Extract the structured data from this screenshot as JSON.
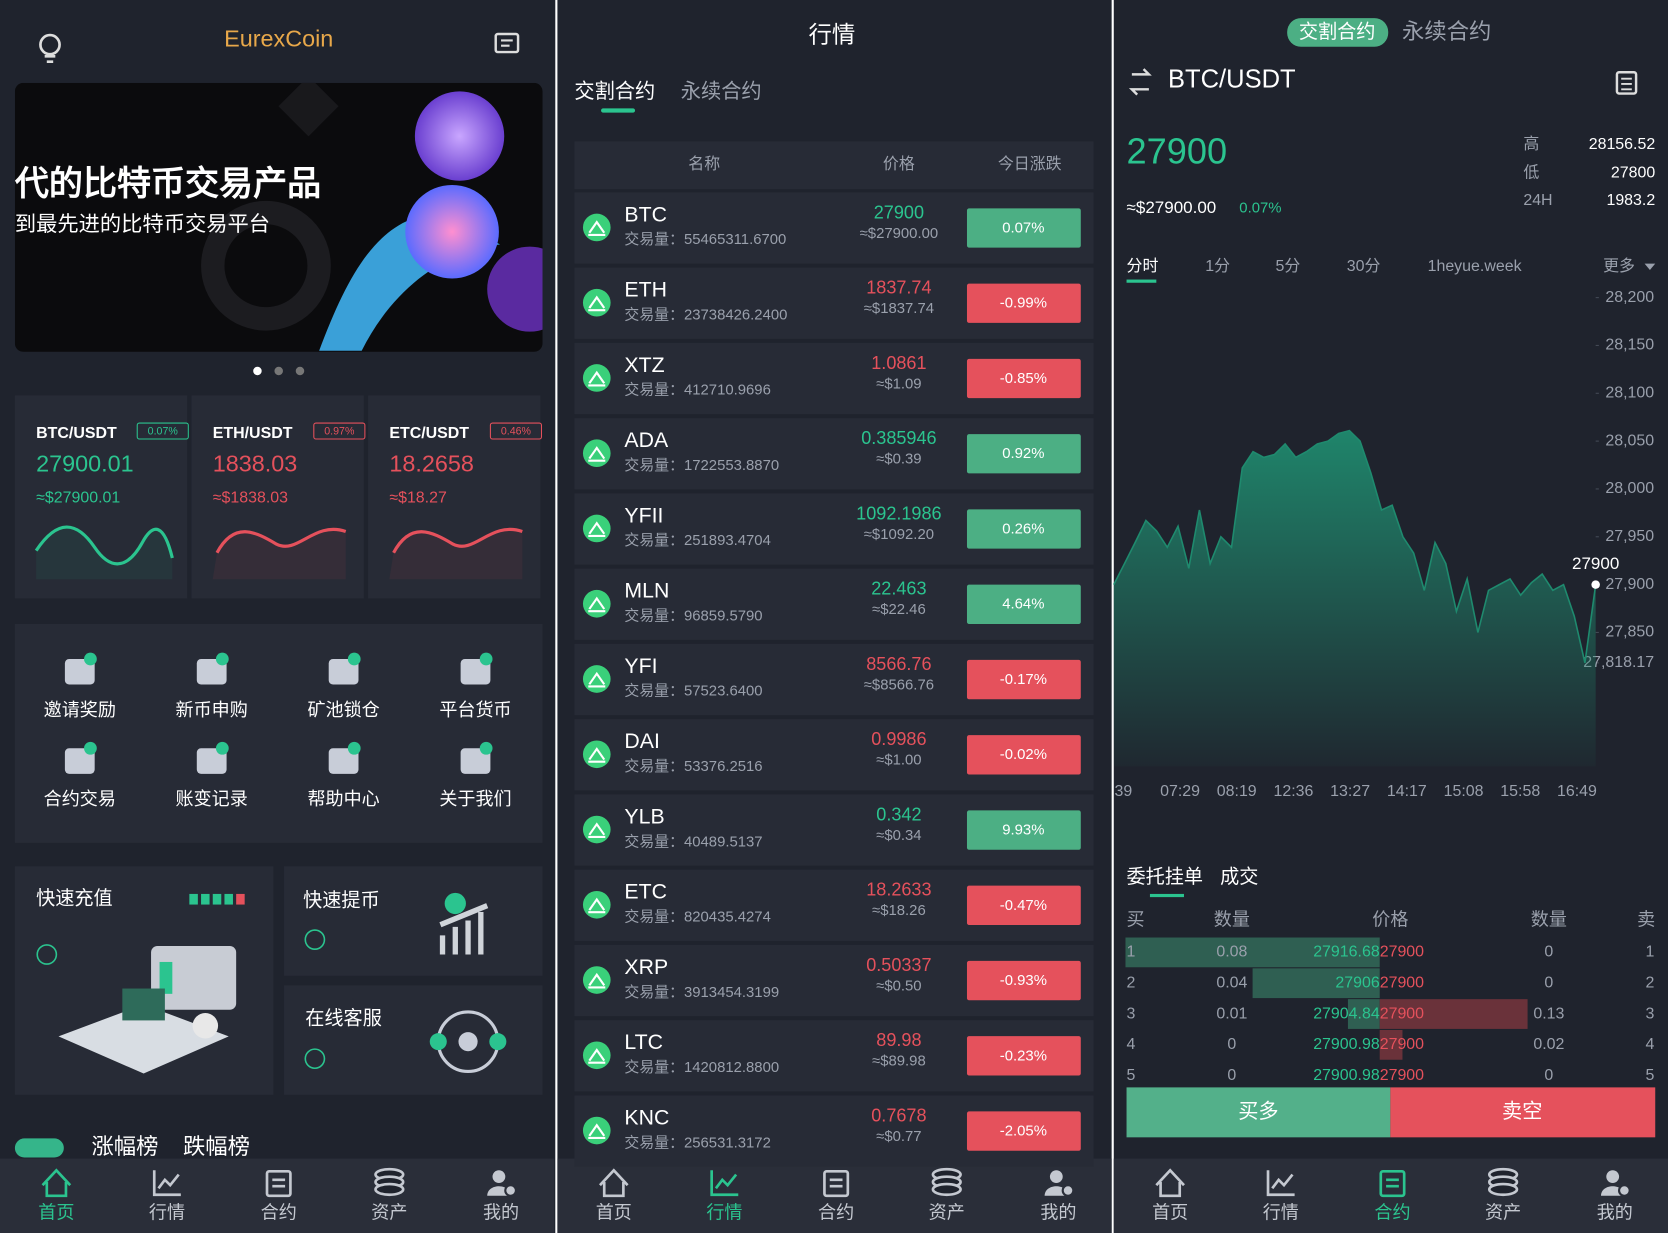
{
  "home": {
    "title": "EurexCoin",
    "banner": {
      "headline": "代的比特币交易产品",
      "subline": "到最先进的比特币交易平台"
    },
    "tickers": [
      {
        "pair": "BTC/USDT",
        "change": "0.07%",
        "price": "27900.01",
        "usd": "≈$27900.01",
        "color": "#2bc48f"
      },
      {
        "pair": "ETH/USDT",
        "change": "0.97%",
        "price": "1838.03",
        "usd": "≈$1838.03",
        "color": "#e5515c"
      },
      {
        "pair": "ETC/USDT",
        "change": "0.46%",
        "price": "18.2658",
        "usd": "≈$18.27",
        "color": "#e5515c"
      }
    ],
    "menu": [
      "邀请奖励",
      "新币申购",
      "矿池锁仓",
      "平台货币",
      "合约交易",
      "账变记录",
      "帮助中心",
      "关于我们"
    ],
    "quick": [
      "快速充值",
      "快速提币",
      "在线客服"
    ],
    "rank_tabs": [
      "涨幅榜",
      "跌幅榜"
    ]
  },
  "nav": [
    "首页",
    "行情",
    "合约",
    "资产",
    "我的"
  ],
  "market": {
    "title": "行情",
    "tabs": [
      "交割合约",
      "永续合约"
    ],
    "columns": [
      "名称",
      "价格",
      "今日涨跌"
    ],
    "volume_label": "交易量：",
    "rows": [
      {
        "symbol": "BTC",
        "volume": "55465311.6700",
        "price": "27900",
        "usd": "≈$27900.00",
        "change": "0.07%"
      },
      {
        "symbol": "ETH",
        "volume": "23738426.2400",
        "price": "1837.74",
        "usd": "≈$1837.74",
        "change": "-0.99%"
      },
      {
        "symbol": "XTZ",
        "volume": "412710.9696",
        "price": "1.0861",
        "usd": "≈$1.09",
        "change": "-0.85%"
      },
      {
        "symbol": "ADA",
        "volume": "1722553.8870",
        "price": "0.385946",
        "usd": "≈$0.39",
        "change": "0.92%"
      },
      {
        "symbol": "YFII",
        "volume": "251893.4704",
        "price": "1092.1986",
        "usd": "≈$1092.20",
        "change": "0.26%"
      },
      {
        "symbol": "MLN",
        "volume": "96859.5790",
        "price": "22.463",
        "usd": "≈$22.46",
        "change": "4.64%"
      },
      {
        "symbol": "YFI",
        "volume": "57523.6400",
        "price": "8566.76",
        "usd": "≈$8566.76",
        "change": "-0.17%"
      },
      {
        "symbol": "DAI",
        "volume": "53376.2516",
        "price": "0.9986",
        "usd": "≈$1.00",
        "change": "-0.02%"
      },
      {
        "symbol": "YLB",
        "volume": "40489.5137",
        "price": "0.342",
        "usd": "≈$0.34",
        "change": "9.93%"
      },
      {
        "symbol": "ETC",
        "volume": "820435.4274",
        "price": "18.2633",
        "usd": "≈$18.26",
        "change": "-0.47%"
      },
      {
        "symbol": "XRP",
        "volume": "3913454.3199",
        "price": "0.50337",
        "usd": "≈$0.50",
        "change": "-0.93%"
      },
      {
        "symbol": "LTC",
        "volume": "1420812.8800",
        "price": "89.98",
        "usd": "≈$89.98",
        "change": "-0.23%"
      },
      {
        "symbol": "KNC",
        "volume": "256531.3172",
        "price": "0.7678",
        "usd": "≈$0.77",
        "change": "-2.05%"
      }
    ]
  },
  "trade": {
    "tabs": [
      "交割合约",
      "永续合约"
    ],
    "pair": "BTC/USDT",
    "price": "27900",
    "usd": "≈$27900.00",
    "change": "0.07%",
    "stats": [
      {
        "label": "高",
        "value": "28156.52"
      },
      {
        "label": "低",
        "value": "27800"
      },
      {
        "label": "24H",
        "value": "1983.2"
      }
    ],
    "periods": [
      "分时",
      "1分",
      "5分",
      "30分",
      "1heyue.week",
      "更多"
    ],
    "book": {
      "tabs": [
        "委托挂单",
        "成交"
      ],
      "columns": [
        "买",
        "数量",
        "价格",
        "数量",
        "卖"
      ],
      "rows": [
        {
          "buy_no": 1,
          "buy_qty": 0.08,
          "buy_price": 27916.68,
          "sell_price": 27900,
          "sell_qty": 0,
          "sell_no": 1
        },
        {
          "buy_no": 2,
          "buy_qty": 0.04,
          "buy_price": 27906,
          "sell_price": 27900,
          "sell_qty": 0,
          "sell_no": 2
        },
        {
          "buy_no": 3,
          "buy_qty": 0.01,
          "buy_price": 27904.84,
          "sell_price": 27900,
          "sell_qty": 0.13,
          "sell_no": 3
        },
        {
          "buy_no": 4,
          "buy_qty": 0,
          "buy_price": 27900.98,
          "sell_price": 27900,
          "sell_qty": 0.02,
          "sell_no": 4
        },
        {
          "buy_no": 5,
          "buy_qty": 0,
          "buy_price": 27900.98,
          "sell_price": 27900,
          "sell_qty": 0,
          "sell_no": 5
        }
      ]
    },
    "buttons": [
      "买多",
      "卖空"
    ]
  },
  "chart_data": {
    "type": "area",
    "color": "#1f8a6e",
    "x_labels": [
      "39",
      "07:29",
      "08:19",
      "12:36",
      "13:27",
      "14:17",
      "15:08",
      "15:58",
      "16:49"
    ],
    "values": [
      27900,
      27922,
      27944,
      27967,
      27956,
      27939,
      27961,
      27917,
      27978,
      27922,
      27950,
      27939,
      28022,
      28039,
      28033,
      28036,
      28047,
      28033,
      28039,
      28047,
      28050,
      28058,
      28061,
      28050,
      28017,
      27978,
      27983,
      27950,
      27933,
      27894,
      27944,
      27922,
      27872,
      27906,
      27850,
      27894,
      27900,
      27906,
      27889,
      27902,
      27911,
      27894,
      27900,
      27867,
      27818.17,
      27900
    ],
    "ylim": [
      27710,
      28220
    ],
    "yticks": [
      {
        "value": 28200,
        "label": "28,200"
      },
      {
        "value": 28150,
        "label": "28,150"
      },
      {
        "value": 28100,
        "label": "28,100"
      },
      {
        "value": 28050,
        "label": "28,050"
      },
      {
        "value": 28000,
        "label": "28,000"
      },
      {
        "value": 27950,
        "label": "27,950"
      },
      {
        "value": 27900,
        "label": "27,900"
      },
      {
        "value": 27850,
        "label": "27,850"
      },
      {
        "value": 27818.17,
        "label": "27,818.17"
      }
    ]
  }
}
